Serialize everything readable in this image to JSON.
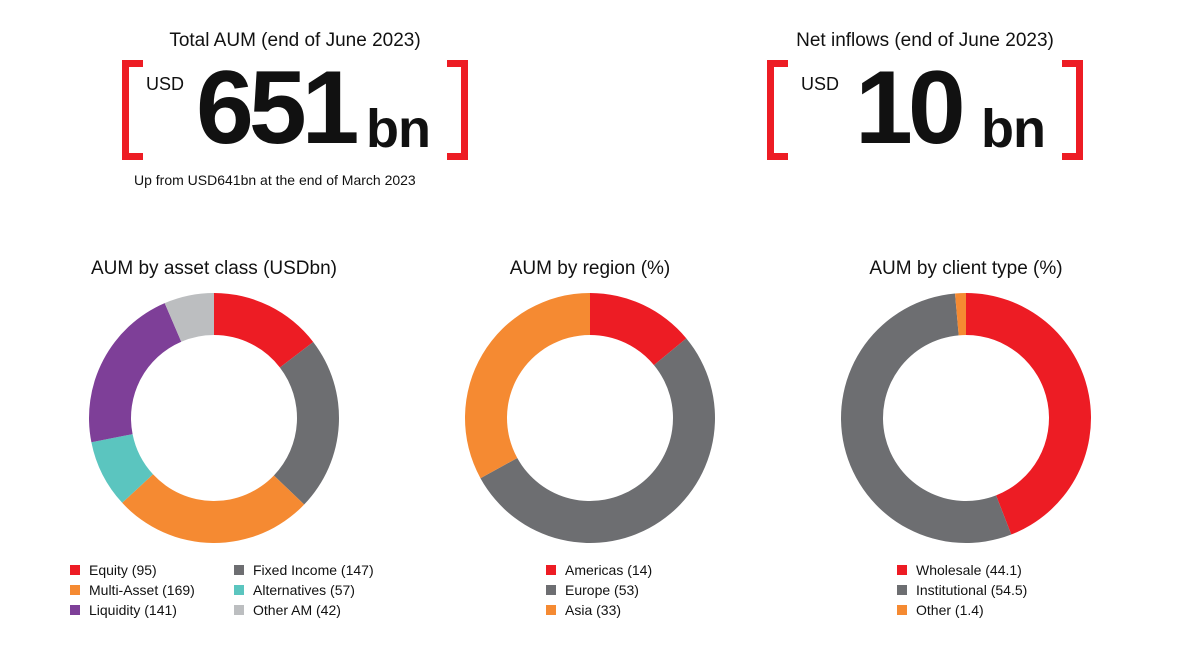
{
  "kpis": {
    "total_aum": {
      "title": "Total AUM (end of June 2023)",
      "currency": "USD",
      "value": "651",
      "unit": "bn",
      "note": "Up from USD641bn at the end of March 2023"
    },
    "net_inflows": {
      "title": "Net inflows (end of June 2023)",
      "currency": "USD",
      "value": "10",
      "unit": "bn"
    }
  },
  "colors": {
    "accent": "#ed1c24"
  },
  "chart_data": [
    {
      "type": "pie",
      "donut": true,
      "title": "AUM by asset class (USDbn)",
      "categories": [
        "Equity (95)",
        "Fixed Income (147)",
        "Multi-Asset (169)",
        "Alternatives (57)",
        "Liquidity (141)",
        "Other AM (42)"
      ],
      "values": [
        95,
        147,
        169,
        57,
        141,
        42
      ],
      "colors": [
        "#ed1c24",
        "#6d6e71",
        "#f58a32",
        "#5bc5bf",
        "#7e3f98",
        "#bcbec0"
      ],
      "legend_order": [
        0,
        1,
        2,
        3,
        4,
        5
      ],
      "legend": "bottom"
    },
    {
      "type": "pie",
      "donut": true,
      "title": "AUM by region (%)",
      "categories": [
        "Americas (14)",
        "Europe (53)",
        "Asia (33)"
      ],
      "values": [
        14,
        53,
        33
      ],
      "colors": [
        "#ed1c24",
        "#6d6e71",
        "#f58a32"
      ],
      "legend": "bottom"
    },
    {
      "type": "pie",
      "donut": true,
      "title": "AUM by client type (%)",
      "categories": [
        "Wholesale (44.1)",
        "Institutional (54.5)",
        "Other (1.4)"
      ],
      "values": [
        44.1,
        54.5,
        1.4
      ],
      "colors": [
        "#ed1c24",
        "#6d6e71",
        "#f58a32"
      ],
      "legend": "bottom"
    }
  ]
}
